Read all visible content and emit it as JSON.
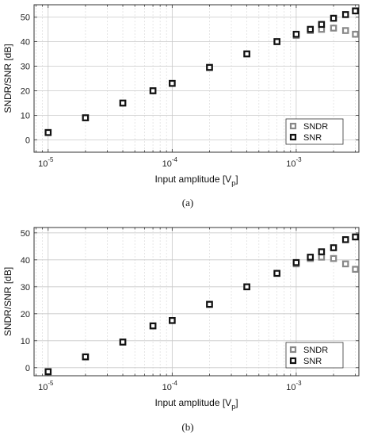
{
  "chart_data": [
    {
      "type": "scatter",
      "panel_caption": "(a)",
      "xlabel": "Input amplitude [V",
      "xlabel_sub": "p",
      "xlabel_close": "]",
      "ylabel": "SNDR/SNR [dB]",
      "xscale": "log",
      "xlim": [
        7.7e-06,
        0.0032
      ],
      "ylim": [
        -5,
        55
      ],
      "yticks": [
        0,
        10,
        20,
        30,
        40,
        50
      ],
      "xticks": [
        {
          "value": 1e-05,
          "base": "10",
          "exp": "-5"
        },
        {
          "value": 0.0001,
          "base": "10",
          "exp": "-4"
        },
        {
          "value": 0.001,
          "base": "10",
          "exp": "-3"
        }
      ],
      "grid": true,
      "legend_position": "bottom-right",
      "series": [
        {
          "name": "SNDR",
          "color": "#888888",
          "x": [
            1e-05,
            2e-05,
            4e-05,
            7e-05,
            0.0001,
            0.0002,
            0.0004,
            0.0007,
            0.001,
            0.0013,
            0.0016,
            0.002,
            0.0025,
            0.003
          ],
          "y": [
            3,
            9,
            15,
            20,
            23,
            29.5,
            35,
            40,
            42.5,
            44.5,
            45,
            45.5,
            44.5,
            43
          ]
        },
        {
          "name": "SNR",
          "color": "#111111",
          "x": [
            1e-05,
            2e-05,
            4e-05,
            7e-05,
            0.0001,
            0.0002,
            0.0004,
            0.0007,
            0.001,
            0.0013,
            0.0016,
            0.002,
            0.0025,
            0.003
          ],
          "y": [
            3,
            9,
            15,
            20,
            23,
            29.5,
            35,
            40,
            43,
            45,
            47,
            49.5,
            51,
            52.5
          ]
        }
      ]
    },
    {
      "type": "scatter",
      "panel_caption": "(b)",
      "xlabel": "Input amplitude [V",
      "xlabel_sub": "p",
      "xlabel_close": "]",
      "ylabel": "SNDR/SNR [dB]",
      "xscale": "log",
      "xlim": [
        7.7e-06,
        0.0032
      ],
      "ylim": [
        -3,
        52
      ],
      "yticks": [
        0,
        10,
        20,
        30,
        40,
        50
      ],
      "xticks": [
        {
          "value": 1e-05,
          "base": "10",
          "exp": "-5"
        },
        {
          "value": 0.0001,
          "base": "10",
          "exp": "-4"
        },
        {
          "value": 0.001,
          "base": "10",
          "exp": "-3"
        }
      ],
      "grid": true,
      "legend_position": "bottom-right",
      "series": [
        {
          "name": "SNDR",
          "color": "#888888",
          "x": [
            1e-05,
            2e-05,
            4e-05,
            7e-05,
            0.0001,
            0.0002,
            0.0004,
            0.0007,
            0.001,
            0.0013,
            0.0016,
            0.002,
            0.0025,
            0.003
          ],
          "y": [
            -1.5,
            4,
            9.5,
            15.5,
            17.5,
            23.5,
            30,
            35,
            38.5,
            40.5,
            41,
            40.5,
            38.5,
            36.5
          ]
        },
        {
          "name": "SNR",
          "color": "#111111",
          "x": [
            1e-05,
            2e-05,
            4e-05,
            7e-05,
            0.0001,
            0.0002,
            0.0004,
            0.0007,
            0.001,
            0.0013,
            0.0016,
            0.002,
            0.0025,
            0.003
          ],
          "y": [
            -1.5,
            4,
            9.5,
            15.5,
            17.5,
            23.5,
            30,
            35,
            39,
            41,
            43,
            44.5,
            47.5,
            48.5
          ]
        }
      ]
    }
  ]
}
